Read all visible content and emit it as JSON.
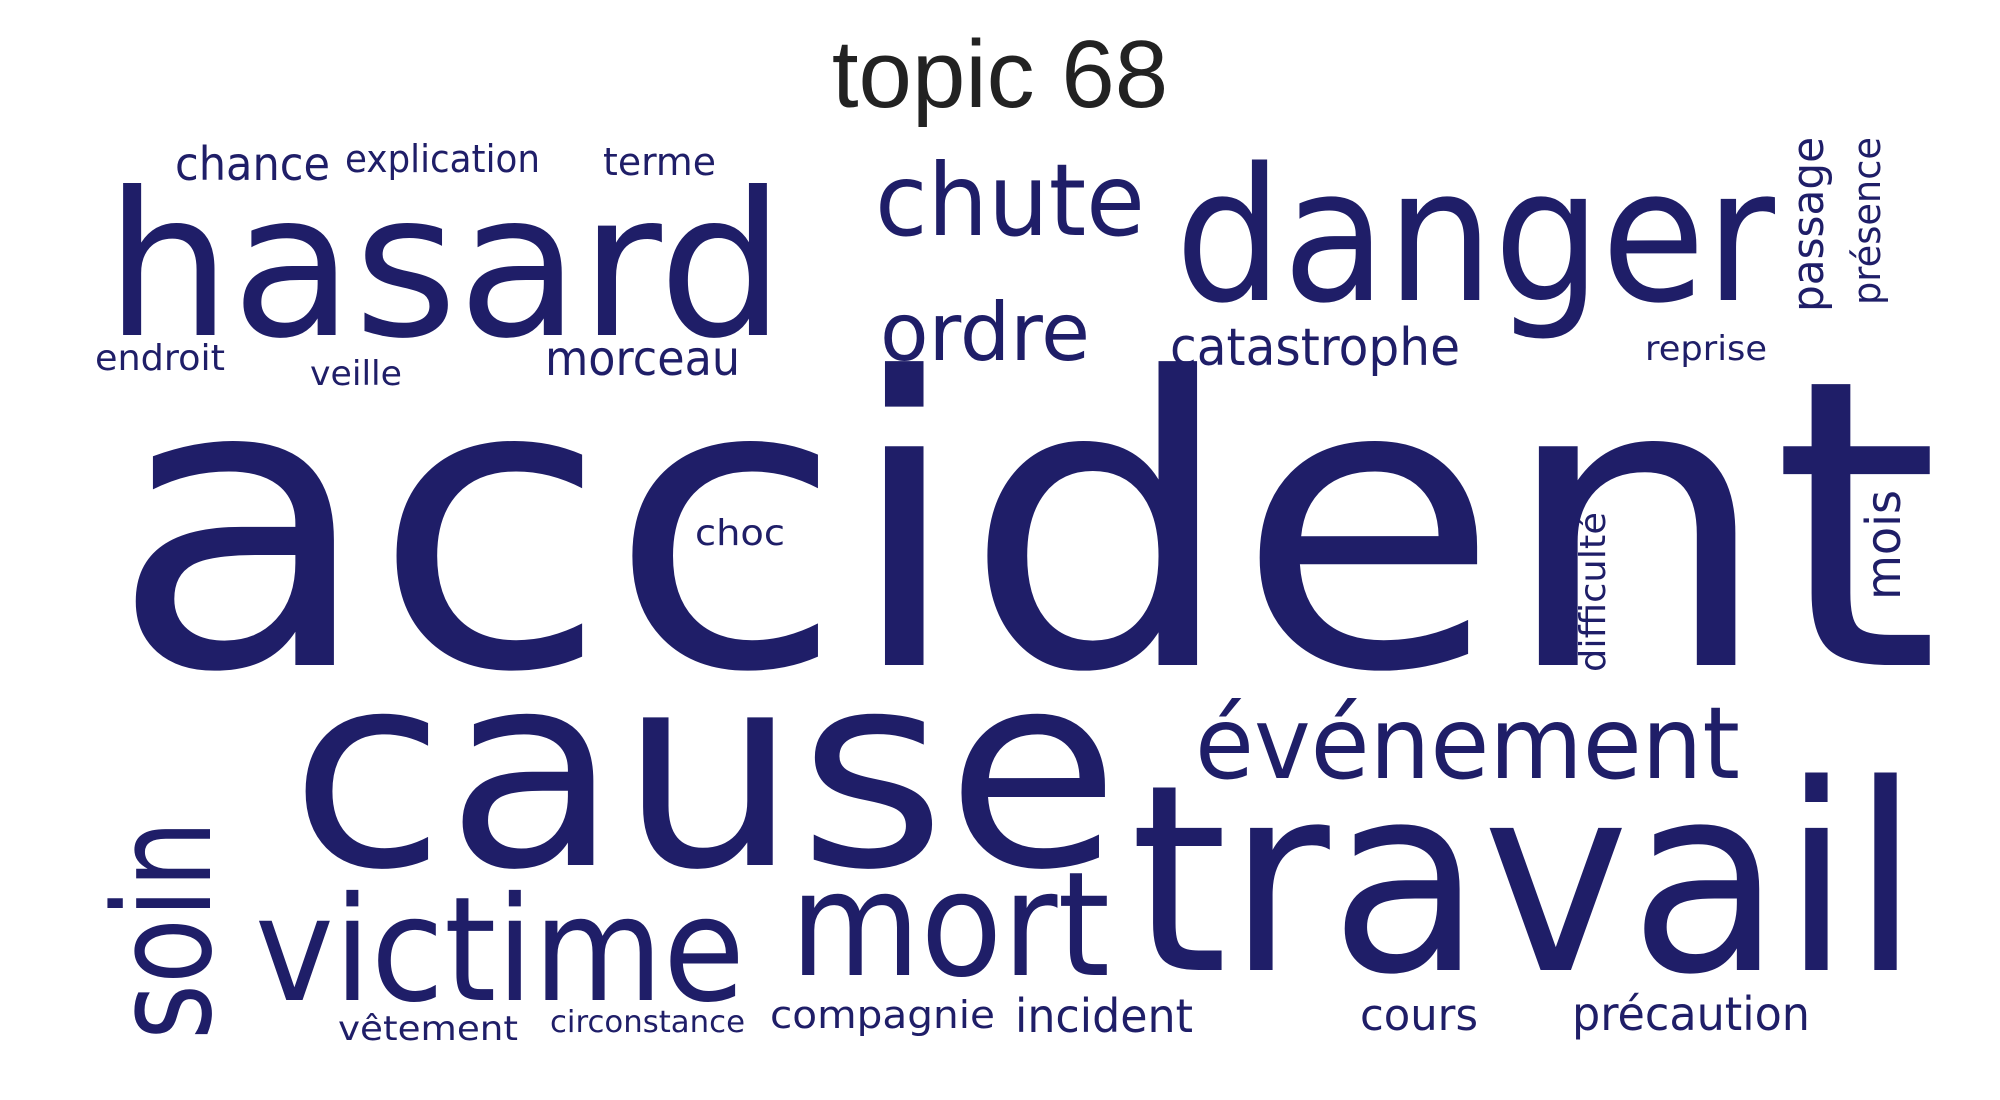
{
  "title": "topic 68",
  "colors": {
    "word": "#1f1e68",
    "title": "#222222",
    "background": "#ffffff"
  },
  "words": [
    "accident",
    "cause",
    "travail",
    "hasard",
    "danger",
    "victime",
    "mort",
    "soin",
    "événement",
    "chute",
    "ordre",
    "catastrophe",
    "morceau",
    "chance",
    "explication",
    "terme",
    "endroit",
    "veille",
    "passage",
    "présence",
    "reprise",
    "choc",
    "difficulté",
    "mois",
    "vêtement",
    "circonstance",
    "compagnie",
    "incident",
    "cours",
    "précaution"
  ]
}
